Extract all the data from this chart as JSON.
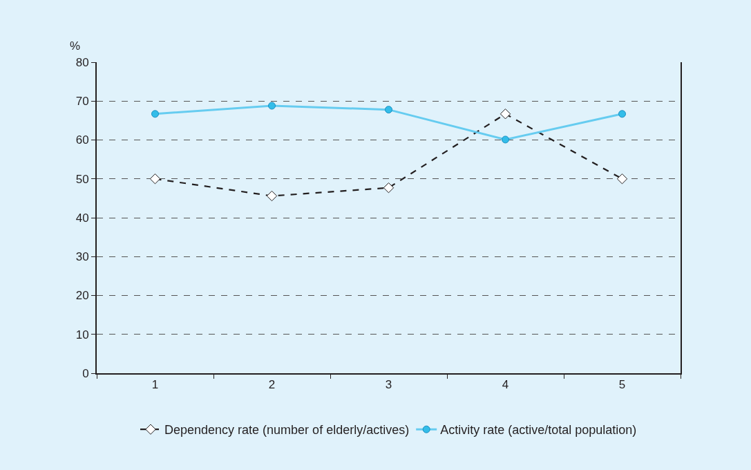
{
  "chart_data": {
    "type": "line",
    "ylabel": "%",
    "categories": [
      "1",
      "2",
      "3",
      "4",
      "5"
    ],
    "series": [
      {
        "name": "Dependency rate (number of elderly/actives)",
        "color": "#231f20",
        "values": [
          50.0,
          45.6,
          47.7,
          66.7,
          50.0
        ],
        "line_style": "dashed",
        "marker": "diamond"
      },
      {
        "name": "Activity rate (active/total population)",
        "color": "#66ccf0",
        "values": [
          66.7,
          68.8,
          67.8,
          60.1,
          66.7
        ],
        "line_style": "solid",
        "marker": "circle"
      }
    ],
    "ylim": [
      0,
      80
    ],
    "yticks": [
      0,
      10,
      20,
      30,
      40,
      50,
      60,
      70,
      80
    ],
    "grid": "y",
    "legend": "bottom"
  }
}
